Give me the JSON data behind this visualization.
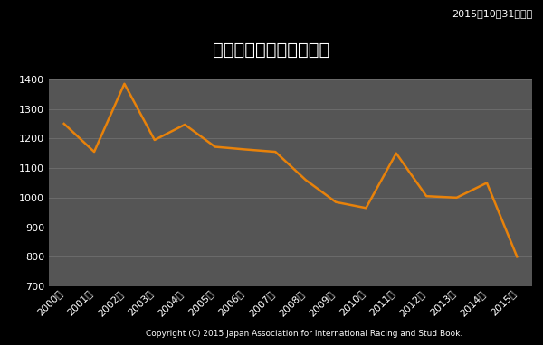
{
  "title": "繁殖登録申込頭数の推移",
  "date_note": "2015年10月31日現在",
  "copyright": "Copyright (C) 2015 Japan Association for International Racing and Stud Book.",
  "years": [
    "2000年",
    "2001年",
    "2002年",
    "2003年",
    "2004年",
    "2005年",
    "2006年",
    "2007年",
    "2008年",
    "2009年",
    "2010年",
    "2011年",
    "2012年",
    "2013年",
    "2014年",
    "2015年"
  ],
  "values": [
    1250,
    1155,
    1385,
    1195,
    1247,
    1172,
    1163,
    1155,
    1060,
    985,
    965,
    1150,
    1005,
    1000,
    1050,
    800
  ],
  "line_color": "#e8820a",
  "outer_bg_color": "#000000",
  "inner_bg_color": "#3c3c3c",
  "plot_bg_color": "#555555",
  "text_color": "#ffffff",
  "grid_color": "#888888",
  "ylim": [
    700,
    1400
  ],
  "yticks": [
    700,
    800,
    900,
    1000,
    1100,
    1200,
    1300,
    1400
  ],
  "title_fontsize": 14,
  "tick_fontsize": 8,
  "note_fontsize": 8,
  "linewidth": 1.8
}
